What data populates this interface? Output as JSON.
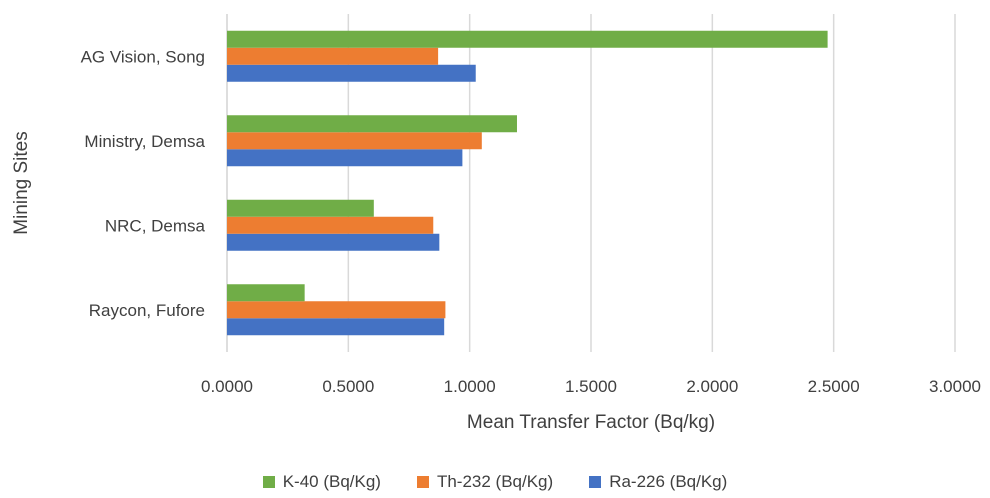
{
  "chart_data": {
    "type": "bar",
    "orientation": "horizontal",
    "categories": [
      "Raycon, Fufore",
      "NRC, Demsa",
      "Ministry, Demsa",
      "AG Vision, Song"
    ],
    "series": [
      {
        "name": "Ra-226 (Bq/Kg)",
        "color": "#4472C4",
        "values": [
          0.895,
          0.875,
          0.97,
          1.025
        ]
      },
      {
        "name": "Th-232 (Bq/Kg)",
        "color": "#ED7D31",
        "values": [
          0.9,
          0.85,
          1.05,
          0.87
        ]
      },
      {
        "name": "K-40 (Bq/Kg)",
        "color": "#70AD47",
        "values": [
          0.32,
          0.605,
          1.195,
          2.475
        ]
      }
    ],
    "xticks": [
      "0.0000",
      "0.5000",
      "1.0000",
      "1.5000",
      "2.0000",
      "2.5000",
      "3.0000"
    ],
    "xlim": [
      0,
      3
    ],
    "xlabel": "Mean Transfer Factor (Bq/kg)",
    "ylabel": "Mining Sites",
    "grid": "vertical",
    "legend_position": "bottom",
    "legend_order": [
      "K-40 (Bq/Kg)",
      "Th-232 (Bq/Kg)",
      "Ra-226 (Bq/Kg)"
    ]
  }
}
